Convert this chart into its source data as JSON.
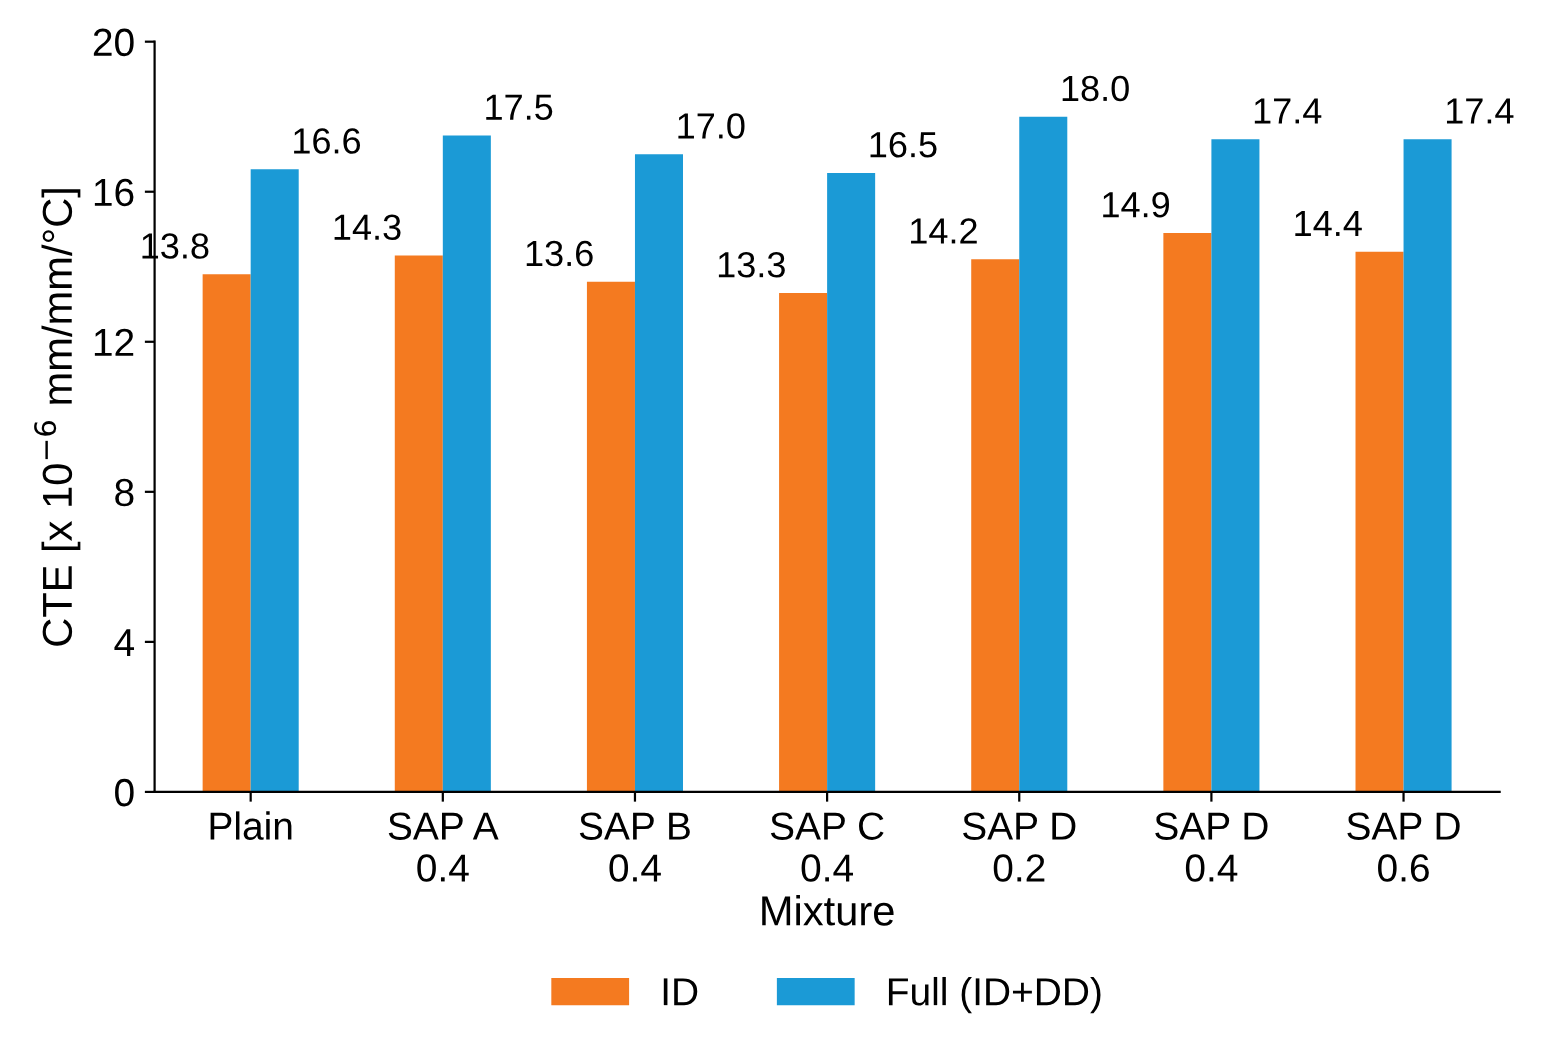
{
  "chart_data": {
    "type": "bar",
    "xlabel": "Mixture",
    "ylabel": "CTE [x 10$^{−6}$ mm/mm/°C]",
    "categories": [
      "Plain",
      "SAP A\n0.4",
      "SAP B\n0.4",
      "SAP C\n0.4",
      "SAP D\n0.2",
      "SAP D\n0.4",
      "SAP D\n0.6"
    ],
    "series": [
      {
        "name": "ID",
        "color": "#f47a20",
        "values": [
          13.8,
          14.3,
          13.6,
          13.3,
          14.2,
          14.9,
          14.4
        ],
        "value_labels": [
          "13.8",
          "14.3",
          "13.6",
          "13.3",
          "14.2",
          "14.9",
          "14.4"
        ]
      },
      {
        "name": "Full (ID+DD)",
        "color": "#1b9ad6",
        "values": [
          16.6,
          17.5,
          17.0,
          16.5,
          18.0,
          17.4,
          17.4
        ],
        "value_labels": [
          "16.6",
          "17.5",
          "17.0",
          "16.5",
          "18.0",
          "17.4",
          "17.4"
        ]
      }
    ],
    "ylim": [
      0,
      20
    ],
    "yticks": [
      0,
      4,
      8,
      12,
      16,
      20
    ],
    "legend": "bottom",
    "grid": false
  }
}
